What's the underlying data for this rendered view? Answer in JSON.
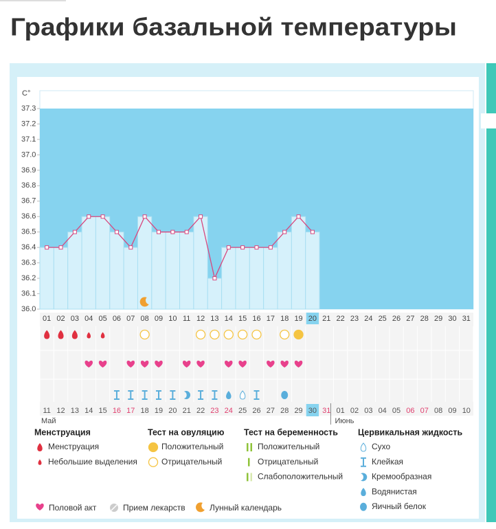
{
  "chart_data": {
    "type": "line",
    "title": "Графики базальной температуры",
    "y_label": "C°",
    "categories": [
      "01",
      "02",
      "03",
      "04",
      "05",
      "06",
      "07",
      "08",
      "09",
      "10",
      "11",
      "12",
      "13",
      "14",
      "15",
      "16",
      "17",
      "18",
      "19",
      "20",
      "21",
      "22",
      "23",
      "24",
      "25",
      "26",
      "27",
      "28",
      "29",
      "30",
      "31"
    ],
    "values": [
      36.4,
      36.4,
      36.5,
      36.6,
      36.6,
      36.5,
      36.4,
      36.6,
      36.5,
      36.5,
      36.5,
      36.6,
      36.2,
      36.4,
      36.4,
      36.4,
      36.4,
      36.5,
      36.6,
      36.5,
      null,
      null,
      null,
      null,
      null,
      null,
      null,
      null,
      null,
      null,
      null
    ],
    "ylim": [
      36.0,
      37.3
    ],
    "yticks": [
      {
        "value": 36.0,
        "label": "36.0"
      },
      36.1,
      36.2,
      36.3,
      36.4,
      36.5,
      36.6,
      36.7,
      36.8,
      36.9,
      {
        "value": 37.0,
        "label": "37.0"
      },
      37.1,
      37.2,
      37.3
    ],
    "color": "#d8477e",
    "dates": [
      "11",
      "12",
      "13",
      "14",
      "15",
      "16",
      "17",
      "18",
      "19",
      "20",
      "21",
      "22",
      "23",
      "24",
      "25",
      "26",
      "27",
      "28",
      "29",
      "30",
      "31",
      "01",
      "02",
      "03",
      "04",
      "05",
      "06",
      "07",
      "08",
      "09",
      "10"
    ],
    "date_colors": [
      "#555",
      "#555",
      "#555",
      "#555",
      "#555",
      "#e0406f",
      "#e0406f",
      "#555",
      "#555",
      "#555",
      "#555",
      "#555",
      "#e0406f",
      "#e0406f",
      "#555",
      "#555",
      "#555",
      "#555",
      "#555",
      "#555",
      "#e0406f",
      "#555",
      "#555",
      "#555",
      "#555",
      "#555",
      "#e0406f",
      "#e0406f",
      "#555",
      "#555",
      "#555"
    ],
    "months": [
      "Май",
      "Июнь"
    ],
    "legend": [
      {
        "title": "Менструация",
        "items": [
          "Менструация",
          "Небольшие выделения"
        ]
      },
      {
        "title": "Тест на овуляцию",
        "items": [
          "Положительный",
          "Отрицательный"
        ]
      },
      {
        "title": "Тест на беременность",
        "items": [
          "Положительный",
          "Отрицательный",
          "Слабоположительный"
        ]
      },
      {
        "title": "Цервикальная жидкость",
        "items": [
          "Сухо",
          "Клейкая",
          "Кремообразная",
          "Водянистая",
          "Яичный белок"
        ]
      }
    ],
    "legend_bottom": [
      "Половой акт",
      "Прием лекарств",
      "Лунный календарь"
    ]
  }
}
